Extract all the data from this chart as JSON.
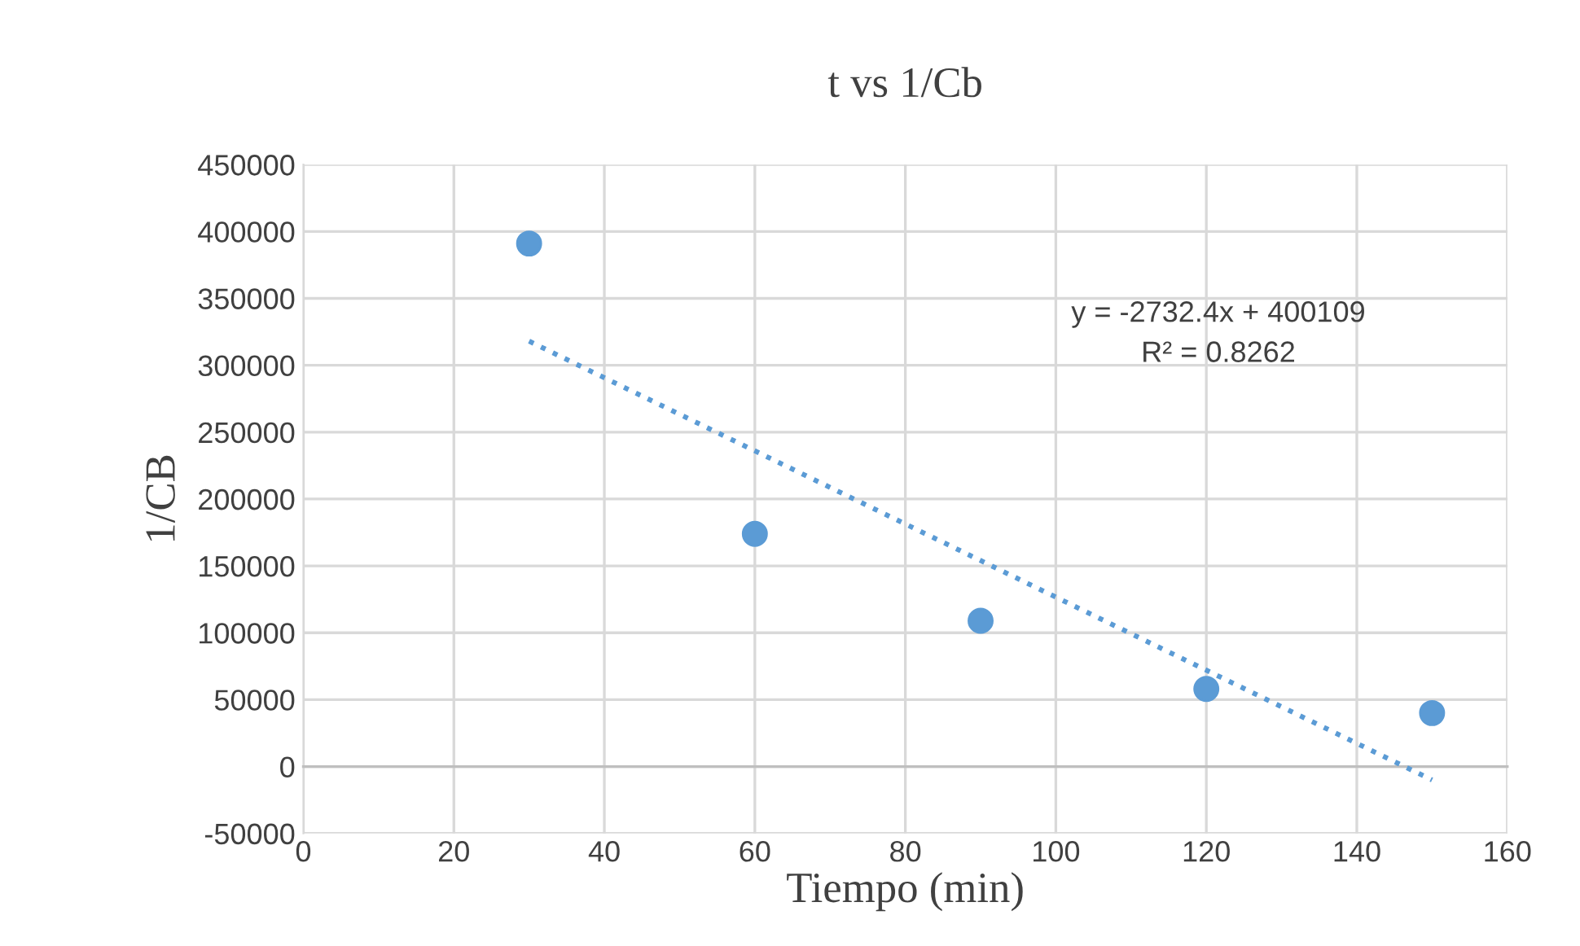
{
  "chart_data": {
    "type": "scatter",
    "title": "t vs 1/Cb",
    "xlabel": "Tiempo (min)",
    "ylabel": "1/CB",
    "x": [
      30,
      60,
      90,
      120,
      150
    ],
    "series": [
      {
        "color": "#5b9bd5",
        "marker": "circle",
        "values": [
          391000,
          174000,
          109000,
          58000,
          40000
        ]
      },
      {
        "type": "line",
        "color": "#5b9bd5",
        "marker": "none",
        "line_style": "dotted",
        "x": [
          30,
          150
        ],
        "values": [
          318000,
          -10000
        ]
      }
    ],
    "annotations": [
      "y = -2732.4x + 400109",
      "R² = 0.8262"
    ],
    "xlim": [
      0,
      160
    ],
    "xticks": [
      0,
      20,
      40,
      60,
      80,
      100,
      120,
      140,
      160
    ],
    "ylim": [
      -50000,
      450000
    ],
    "yticks": [
      -50000,
      0,
      50000,
      100000,
      150000,
      200000,
      250000,
      300000,
      350000,
      400000,
      450000
    ],
    "grid": true,
    "legend": false
  }
}
